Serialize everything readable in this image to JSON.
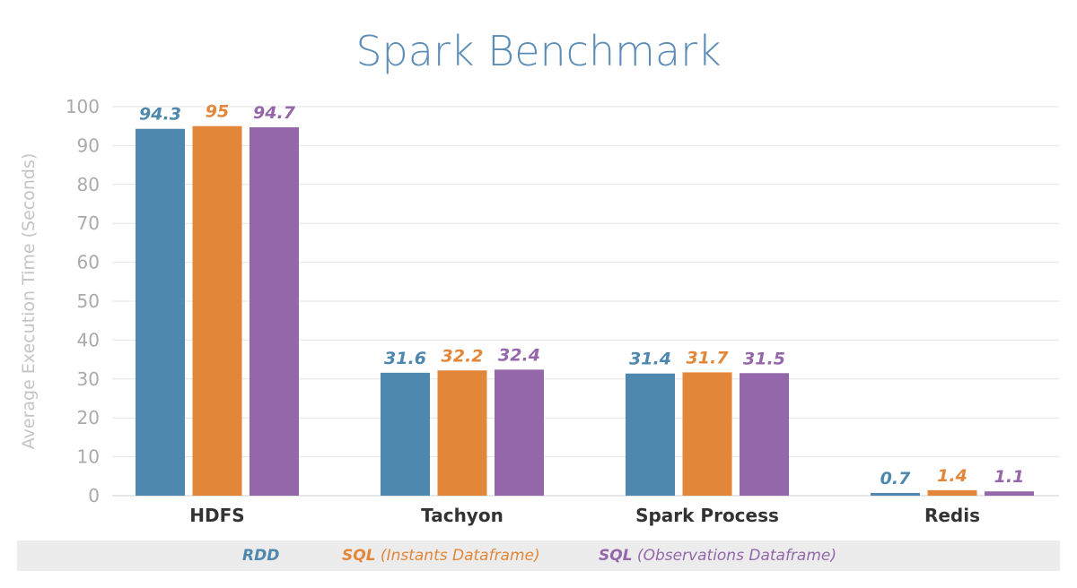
{
  "chart_data": {
    "type": "bar",
    "title": "Spark Benchmark",
    "xlabel": "",
    "ylabel": "Average Execution Time (Seconds)",
    "ylim": [
      0,
      100
    ],
    "yticks": [
      0,
      10,
      20,
      30,
      40,
      50,
      60,
      70,
      80,
      90,
      100
    ],
    "grid": true,
    "categories": [
      "HDFS",
      "Tachyon",
      "Spark Process",
      "Redis"
    ],
    "series": [
      {
        "name": "RDD",
        "name_bold": "RDD",
        "name_rest": "",
        "color": "#4e88ae",
        "values": [
          94.3,
          31.6,
          31.4,
          0.7
        ]
      },
      {
        "name": "SQL (Instants Dataframe)",
        "name_bold": "SQL",
        "name_rest": " (Instants Dataframe)",
        "color": "#e2873a",
        "values": [
          95,
          32.2,
          31.7,
          1.4
        ]
      },
      {
        "name": "SQL (Observations Dataframe)",
        "name_bold": "SQL",
        "name_rest": " (Observations Dataframe)",
        "color": "#9467aa",
        "values": [
          94.7,
          32.4,
          31.5,
          1.1
        ]
      }
    ],
    "legend_position": "bottom"
  },
  "colors": {
    "title": "#5b8db8",
    "axis_text": "#aaaaaa",
    "category_text": "#333333",
    "grid": "#e4e4e4",
    "legend_bg": "#ececec"
  }
}
